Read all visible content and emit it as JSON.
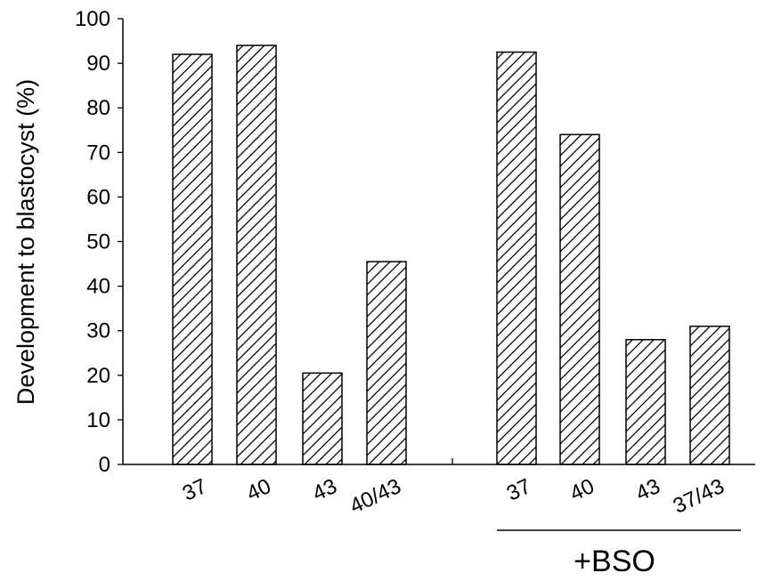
{
  "chart_data": {
    "type": "bar",
    "ylabel": "Development to blastocyst (%)",
    "ylim": [
      0,
      100
    ],
    "yticks": [
      "0",
      "10",
      "20",
      "30",
      "40",
      "50",
      "60",
      "70",
      "80",
      "90",
      "100"
    ],
    "categories": [
      "37",
      "40",
      "43",
      "40/43",
      "37",
      "40",
      "43",
      "37/43"
    ],
    "values": [
      92,
      94,
      20.5,
      45.5,
      92.5,
      74,
      28,
      31
    ],
    "groups": [
      {
        "label": "",
        "categories": [
          "37",
          "40",
          "43",
          "40/43"
        ]
      },
      {
        "label": "+BSO",
        "categories": [
          "37",
          "40",
          "43",
          "37/43"
        ]
      }
    ],
    "bar_fill": "hatched diagonal",
    "grid": false,
    "legend": "none"
  }
}
